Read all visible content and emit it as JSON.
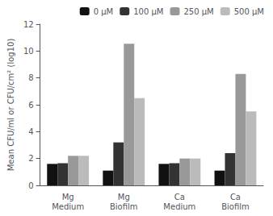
{
  "chart_data": {
    "type": "bar",
    "categories": [
      "Mg\nMedium",
      "Mg\nBiofilm",
      "Ca\nMedium",
      "Ca\nBiofilm"
    ],
    "series": [
      {
        "name": "0 μM",
        "color": "#111111",
        "values": [
          1.6,
          1.1,
          1.6,
          1.1
        ]
      },
      {
        "name": "100 μM",
        "color": "#333333",
        "values": [
          1.65,
          3.2,
          1.65,
          2.4
        ]
      },
      {
        "name": "250 μM",
        "color": "#999999",
        "values": [
          2.2,
          10.55,
          2.0,
          8.3
        ]
      },
      {
        "name": "500 μM",
        "color": "#bbbbbb",
        "values": [
          2.2,
          6.5,
          2.0,
          5.5
        ]
      }
    ],
    "ylabel": "Mean CFU/ml or CFU/cm² (log10)",
    "ylim": [
      0,
      12
    ],
    "yticks": [
      0,
      2,
      4,
      6,
      8,
      10,
      12
    ],
    "grid": false,
    "legend": "upper right"
  }
}
